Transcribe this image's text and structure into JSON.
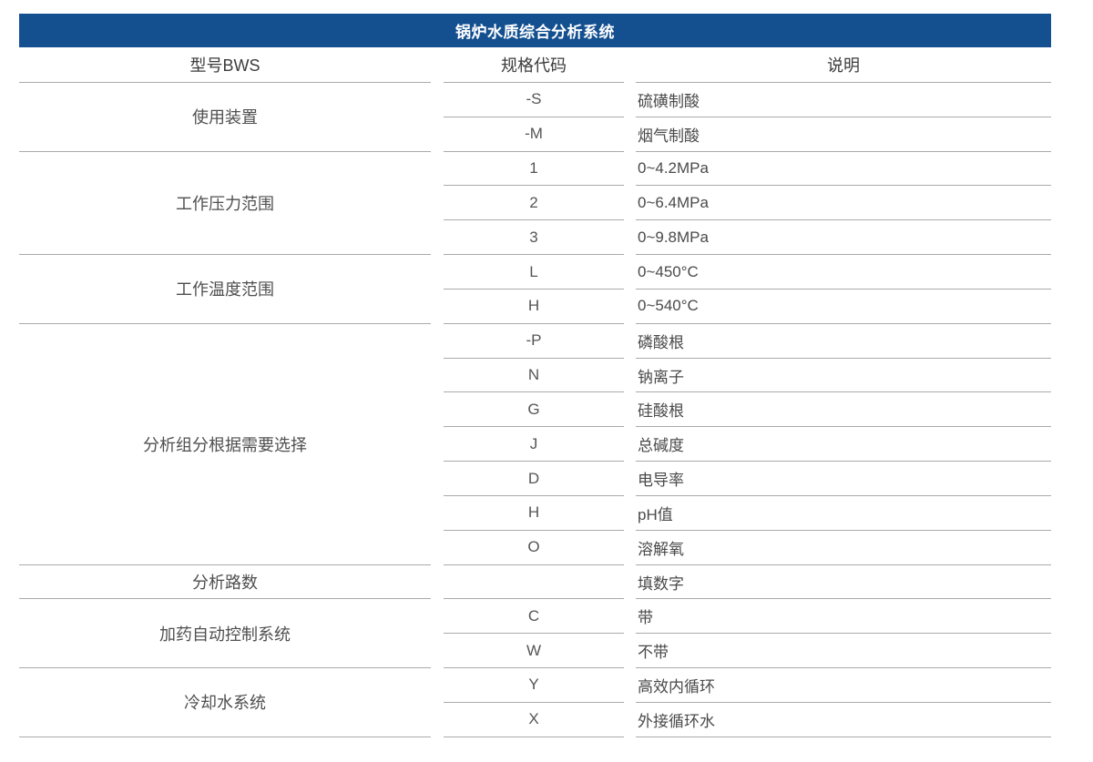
{
  "title": "锅炉水质综合分析系统",
  "colors": {
    "header_bg": "#14508f",
    "header_fg": "#ffffff",
    "line": "#aaaaaa",
    "head_text": "#3b3b3b",
    "text": "#4f4f4f"
  },
  "columns": {
    "model": "型号BWS",
    "code": "规格代码",
    "desc": "说明"
  },
  "groups": [
    {
      "label": "使用装置",
      "rows": [
        {
          "code": "-S",
          "desc": "硫磺制酸"
        },
        {
          "code": "-M",
          "desc": "烟气制酸"
        }
      ]
    },
    {
      "label": "工作压力范围",
      "rows": [
        {
          "code": "1",
          "desc": "0~4.2MPa"
        },
        {
          "code": "2",
          "desc": "0~6.4MPa"
        },
        {
          "code": "3",
          "desc": "0~9.8MPa"
        }
      ]
    },
    {
      "label": "工作温度范围",
      "rows": [
        {
          "code": "L",
          "desc": "0~450°C"
        },
        {
          "code": "H",
          "desc": "0~540°C"
        }
      ]
    },
    {
      "label": "分析组分根据需要选择",
      "rows": [
        {
          "code": "-P",
          "desc": "磷酸根"
        },
        {
          "code": "N",
          "desc": "钠离子"
        },
        {
          "code": "G",
          "desc": "硅酸根"
        },
        {
          "code": "J",
          "desc": "总碱度"
        },
        {
          "code": "D",
          "desc": "电导率"
        },
        {
          "code": "H",
          "desc": "pH值"
        },
        {
          "code": "O",
          "desc": "溶解氧"
        }
      ]
    },
    {
      "label": "分析路数",
      "rows": [
        {
          "code": "",
          "desc": "填数字"
        }
      ]
    },
    {
      "label": "加药自动控制系统",
      "rows": [
        {
          "code": "C",
          "desc": "带"
        },
        {
          "code": "W",
          "desc": "不带"
        }
      ]
    },
    {
      "label": "冷却水系统",
      "rows": [
        {
          "code": "Y",
          "desc": "高效内循环"
        },
        {
          "code": "X",
          "desc": "外接循环水"
        }
      ]
    }
  ]
}
